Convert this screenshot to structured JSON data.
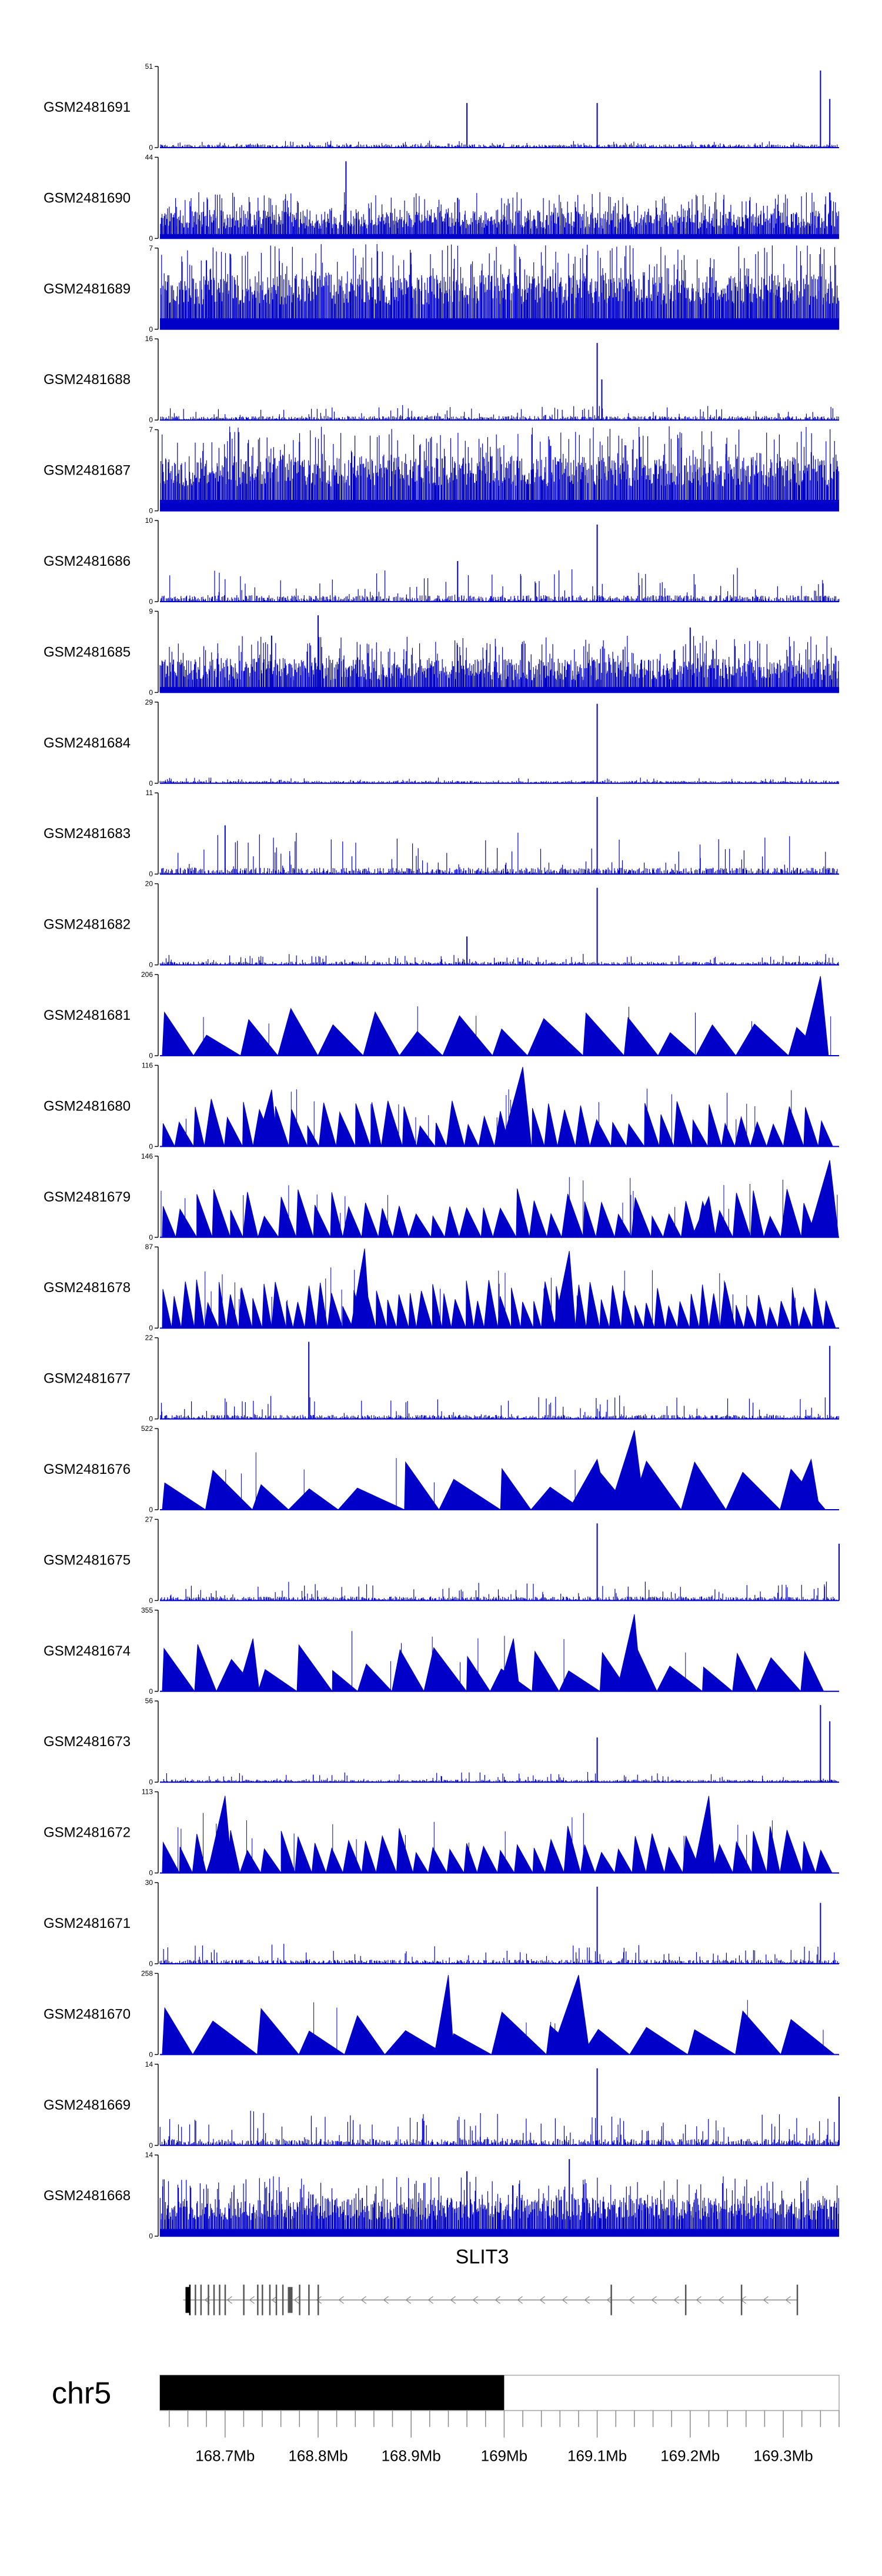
{
  "chart_data": {
    "type": "genome-coverage-tracks",
    "chromosome": "chr5",
    "gene": "SLIT3",
    "region_mb": [
      168.63,
      169.36
    ],
    "axis": {
      "tick_labels": [
        "168.7Mb",
        "168.8Mb",
        "168.9Mb",
        "169Mb",
        "169.1Mb",
        "169.2Mb",
        "169.3Mb"
      ],
      "tick_values": [
        168.7,
        168.8,
        168.9,
        169.0,
        169.1,
        169.2,
        169.3
      ],
      "ideogram_filled_until_mb": 169.0
    },
    "track_color": "#0000c8",
    "tracks": [
      {
        "name": "GSM2481691",
        "ymax": 51,
        "ymin": 0,
        "style": "sparse",
        "base": 0.04,
        "noise": 0.06,
        "peaks": [
          [
            168.96,
            0.55
          ],
          [
            169.1,
            0.55
          ],
          [
            169.34,
            0.95
          ],
          [
            169.35,
            0.6
          ]
        ]
      },
      {
        "name": "GSM2481690",
        "ymax": 44,
        "ymin": 0,
        "style": "dense",
        "base": 0.12,
        "noise": 0.45,
        "peaks": [
          [
            168.83,
            0.95
          ],
          [
            168.95,
            0.5
          ]
        ]
      },
      {
        "name": "GSM2481689",
        "ymax": 7,
        "ymin": 0,
        "style": "dense",
        "base": 0.3,
        "noise": 0.75,
        "peaks": [
          [
            168.68,
            0.85
          ],
          [
            168.9,
            0.8
          ]
        ]
      },
      {
        "name": "GSM2481688",
        "ymax": 16,
        "ymin": 0,
        "style": "sparse",
        "base": 0.05,
        "noise": 0.15,
        "peaks": [
          [
            169.1,
            0.95
          ],
          [
            169.105,
            0.5
          ]
        ]
      },
      {
        "name": "GSM2481687",
        "ymax": 7,
        "ymin": 0,
        "style": "dense",
        "base": 0.3,
        "noise": 0.75,
        "peaks": [
          [
            168.78,
            0.85
          ],
          [
            169.05,
            0.8
          ]
        ]
      },
      {
        "name": "GSM2481686",
        "ymax": 10,
        "ymin": 0,
        "style": "sparse",
        "base": 0.08,
        "noise": 0.35,
        "peaks": [
          [
            169.1,
            0.95
          ],
          [
            168.95,
            0.5
          ]
        ]
      },
      {
        "name": "GSM2481685",
        "ymax": 9,
        "ymin": 0,
        "style": "dense",
        "base": 0.15,
        "noise": 0.55,
        "peaks": [
          [
            168.8,
            0.95
          ],
          [
            168.75,
            0.7
          ],
          [
            169.2,
            0.8
          ]
        ]
      },
      {
        "name": "GSM2481684",
        "ymax": 29,
        "ymin": 0,
        "style": "sparse",
        "base": 0.03,
        "noise": 0.05,
        "peaks": [
          [
            169.1,
            0.98
          ]
        ]
      },
      {
        "name": "GSM2481683",
        "ymax": 11,
        "ymin": 0,
        "style": "sparse",
        "base": 0.08,
        "noise": 0.45,
        "peaks": [
          [
            169.1,
            0.95
          ],
          [
            168.7,
            0.6
          ]
        ]
      },
      {
        "name": "GSM2481682",
        "ymax": 20,
        "ymin": 0,
        "style": "sparse",
        "base": 0.04,
        "noise": 0.1,
        "peaks": [
          [
            169.1,
            0.95
          ],
          [
            168.96,
            0.35
          ]
        ]
      },
      {
        "name": "GSM2481681",
        "ymax": 206,
        "ymin": 0,
        "style": "triangles",
        "count": 16,
        "base": 0.0,
        "noise": 0.0,
        "peaks": [
          [
            169.34,
            0.98
          ]
        ]
      },
      {
        "name": "GSM2481680",
        "ymax": 116,
        "ymin": 0,
        "style": "triangles",
        "count": 42,
        "base": 0.0,
        "noise": 0.0,
        "peaks": [
          [
            169.02,
            0.98
          ],
          [
            168.75,
            0.7
          ]
        ]
      },
      {
        "name": "GSM2481679",
        "ymax": 146,
        "ymin": 0,
        "style": "triangles",
        "count": 40,
        "base": 0.0,
        "noise": 0.0,
        "peaks": [
          [
            169.35,
            0.95
          ],
          [
            169.22,
            0.5
          ]
        ]
      },
      {
        "name": "GSM2481678",
        "ymax": 87,
        "ymin": 0,
        "style": "triangles",
        "count": 60,
        "base": 0.0,
        "noise": 0.0,
        "peaks": [
          [
            168.85,
            0.98
          ],
          [
            169.07,
            0.95
          ]
        ]
      },
      {
        "name": "GSM2481677",
        "ymax": 22,
        "ymin": 0,
        "style": "sparse",
        "base": 0.05,
        "noise": 0.25,
        "peaks": [
          [
            168.79,
            0.95
          ],
          [
            169.35,
            0.9
          ]
        ]
      },
      {
        "name": "GSM2481676",
        "ymax": 522,
        "ymin": 0,
        "style": "triangles",
        "count": 14,
        "base": 0.0,
        "noise": 0.0,
        "peaks": [
          [
            169.14,
            0.98
          ],
          [
            169.1,
            0.62
          ],
          [
            169.33,
            0.62
          ]
        ]
      },
      {
        "name": "GSM2481675",
        "ymax": 27,
        "ymin": 0,
        "style": "sparse",
        "base": 0.05,
        "noise": 0.2,
        "peaks": [
          [
            169.1,
            0.95
          ],
          [
            169.36,
            0.7
          ]
        ]
      },
      {
        "name": "GSM2481674",
        "ymax": 355,
        "ymin": 0,
        "style": "triangles",
        "count": 20,
        "base": 0.0,
        "noise": 0.0,
        "peaks": [
          [
            169.14,
            0.95
          ],
          [
            168.73,
            0.65
          ],
          [
            169.01,
            0.65
          ]
        ]
      },
      {
        "name": "GSM2481673",
        "ymax": 56,
        "ymin": 0,
        "style": "sparse",
        "base": 0.03,
        "noise": 0.1,
        "peaks": [
          [
            169.1,
            0.55
          ],
          [
            169.34,
            0.95
          ],
          [
            169.35,
            0.75
          ]
        ]
      },
      {
        "name": "GSM2481672",
        "ymax": 113,
        "ymin": 0,
        "style": "triangles",
        "count": 40,
        "base": 0.0,
        "noise": 0.0,
        "peaks": [
          [
            168.7,
            0.95
          ],
          [
            169.22,
            0.95
          ]
        ]
      },
      {
        "name": "GSM2481671",
        "ymax": 30,
        "ymin": 0,
        "style": "sparse",
        "base": 0.05,
        "noise": 0.2,
        "peaks": [
          [
            169.1,
            0.95
          ],
          [
            169.34,
            0.75
          ]
        ]
      },
      {
        "name": "GSM2481670",
        "ymax": 258,
        "ymin": 0,
        "style": "triangles",
        "count": 14,
        "base": 0.0,
        "noise": 0.0,
        "peaks": [
          [
            168.94,
            0.98
          ],
          [
            169.08,
            0.98
          ]
        ]
      },
      {
        "name": "GSM2481669",
        "ymax": 14,
        "ymin": 0,
        "style": "sparse",
        "base": 0.08,
        "noise": 0.35,
        "peaks": [
          [
            169.1,
            0.95
          ],
          [
            169.36,
            0.6
          ]
        ]
      },
      {
        "name": "GSM2481668",
        "ymax": 14,
        "ymin": 0,
        "style": "dense",
        "base": 0.2,
        "noise": 0.55,
        "peaks": [
          [
            169.07,
            0.95
          ],
          [
            168.96,
            0.8
          ]
        ]
      }
    ]
  }
}
